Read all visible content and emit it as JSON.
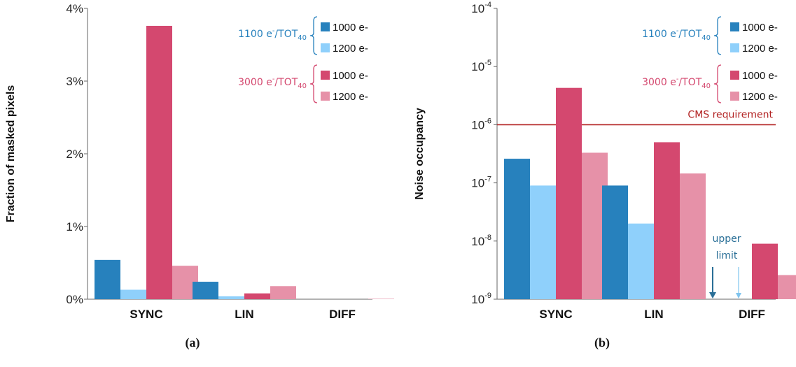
{
  "chart_data": [
    {
      "type": "bar",
      "panel_label": "(a)",
      "ylabel": "Fraction of masked pixels",
      "categories": [
        "SYNC",
        "LIN",
        "DIFF"
      ],
      "y_ticks": [
        "0%",
        "1%",
        "2%",
        "3%",
        "4%"
      ],
      "ylim": [
        0,
        4
      ],
      "y_unit": "%",
      "series": [
        {
          "name": "1100 e-/TOT40, 1000 e-",
          "color": "#2781bd",
          "values": [
            0.54,
            0.24,
            0.0
          ]
        },
        {
          "name": "1100 e-/TOT40, 1200 e-",
          "color": "#8fd0fb",
          "values": [
            0.13,
            0.04,
            0.0
          ]
        },
        {
          "name": "3000 e-/TOT40, 1000 e-",
          "color": "#d4486f",
          "values": [
            3.76,
            0.08,
            0.0
          ]
        },
        {
          "name": "3000 e-/TOT40, 1200 e-",
          "color": "#e691a8",
          "values": [
            0.46,
            0.18,
            0.005
          ]
        }
      ],
      "legend": {
        "groups": [
          {
            "label_main": "1100 e",
            "label_sup": "-",
            "label_mid": "/TOT",
            "label_sub": "40",
            "color": "#2781bd",
            "entries": [
              "1000 e-",
              "1200 e-"
            ]
          },
          {
            "label_main": "3000 e",
            "label_sup": "-",
            "label_mid": "/TOT",
            "label_sub": "40",
            "color": "#d4486f",
            "entries": [
              "1000 e-",
              "1200 e-"
            ]
          }
        ],
        "placement": "top-right"
      }
    },
    {
      "type": "bar",
      "panel_label": "(b)",
      "ylabel": "Noise occupancy",
      "categories": [
        "SYNC",
        "LIN",
        "DIFF"
      ],
      "y_scale": "log",
      "ylim": [
        1e-09,
        0.0001
      ],
      "y_ticks": [
        {
          "base": "10",
          "exp": "-9"
        },
        {
          "base": "10",
          "exp": "-8"
        },
        {
          "base": "10",
          "exp": "-7"
        },
        {
          "base": "10",
          "exp": "-6"
        },
        {
          "base": "10",
          "exp": "-5"
        },
        {
          "base": "10",
          "exp": "-4"
        }
      ],
      "series": [
        {
          "name": "1100 e-/TOT40, 1000 e-",
          "color": "#2781bd",
          "values": [
            2.6e-07,
            9e-08,
            null
          ]
        },
        {
          "name": "1100 e-/TOT40, 1200 e-",
          "color": "#8fd0fb",
          "values": [
            9e-08,
            2e-08,
            null
          ]
        },
        {
          "name": "3000 e-/TOT40, 1000 e-",
          "color": "#d4486f",
          "values": [
            4.3e-06,
            5e-07,
            9e-09
          ]
        },
        {
          "name": "3000 e-/TOT40, 1200 e-",
          "color": "#e691a8",
          "values": [
            3.3e-07,
            1.45e-07,
            2.6e-09
          ]
        }
      ],
      "reference_line": {
        "label": "CMS requirement",
        "value": 1e-06,
        "color": "#b22222"
      },
      "annotation": {
        "lines": [
          "upper",
          "limit"
        ],
        "color": "#2a6f97"
      },
      "legend": {
        "groups": [
          {
            "label_main": "1100 e",
            "label_sup": "-",
            "label_mid": "/TOT",
            "label_sub": "40",
            "color": "#2781bd",
            "entries": [
              "1000 e-",
              "1200 e-"
            ]
          },
          {
            "label_main": "3000 e",
            "label_sup": "-",
            "label_mid": "/TOT",
            "label_sub": "40",
            "color": "#d4486f",
            "entries": [
              "1000 e-",
              "1200 e-"
            ]
          }
        ],
        "placement": "top-right"
      }
    }
  ]
}
